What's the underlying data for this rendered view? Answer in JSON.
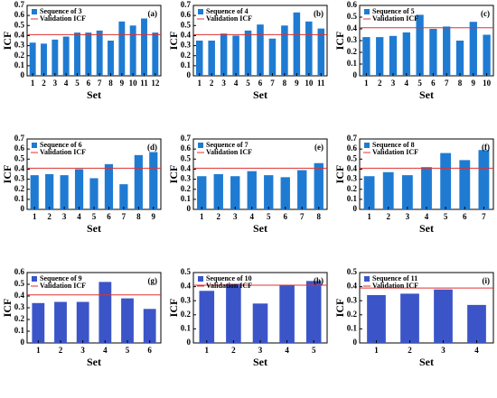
{
  "chart_data": [
    {
      "type": "bar",
      "label": "(a)",
      "xlabel": "Set",
      "ylabel": "ICF",
      "categories": [
        "1",
        "2",
        "3",
        "4",
        "5",
        "6",
        "7",
        "8",
        "9",
        "10",
        "11",
        "12"
      ],
      "series": [
        {
          "name": "Sequence of 3",
          "color": "#1f7bd2",
          "values": [
            0.33,
            0.32,
            0.36,
            0.39,
            0.43,
            0.43,
            0.45,
            0.35,
            0.54,
            0.5,
            0.57,
            0.43
          ]
        }
      ],
      "reference": {
        "name": "Validation ICF",
        "value": 0.41,
        "color": "#e03030"
      },
      "ylim": [
        0,
        0.7
      ],
      "yticks": [
        0,
        0.1,
        0.2,
        0.3,
        0.4,
        0.5,
        0.6,
        0.7
      ]
    },
    {
      "type": "bar",
      "label": "(b)",
      "xlabel": "Set",
      "ylabel": "ICF",
      "categories": [
        "1",
        "2",
        "3",
        "4",
        "5",
        "6",
        "7",
        "8",
        "9",
        "10",
        "11"
      ],
      "series": [
        {
          "name": "Sequence of 4",
          "color": "#1f7bd2",
          "values": [
            0.35,
            0.35,
            0.42,
            0.4,
            0.45,
            0.51,
            0.37,
            0.5,
            0.63,
            0.54,
            0.47
          ]
        }
      ],
      "reference": {
        "name": "Validation ICF",
        "value": 0.41,
        "color": "#e03030"
      },
      "ylim": [
        0,
        0.7
      ],
      "yticks": [
        0,
        0.1,
        0.2,
        0.3,
        0.4,
        0.5,
        0.6,
        0.7
      ]
    },
    {
      "type": "bar",
      "label": "(c)",
      "xlabel": "Set",
      "ylabel": "ICF",
      "categories": [
        "1",
        "2",
        "3",
        "4",
        "5",
        "6",
        "7",
        "8",
        "9",
        "10"
      ],
      "series": [
        {
          "name": "Sequence of 5",
          "color": "#1f7bd2",
          "values": [
            0.33,
            0.33,
            0.34,
            0.37,
            0.52,
            0.4,
            0.42,
            0.3,
            0.46,
            0.35
          ]
        }
      ],
      "reference": {
        "name": "Validation ICF",
        "value": 0.41,
        "color": "#e03030"
      },
      "ylim": [
        0,
        0.6
      ],
      "yticks": [
        0,
        0.1,
        0.2,
        0.3,
        0.4,
        0.5,
        0.6
      ]
    },
    {
      "type": "bar",
      "label": "(d)",
      "xlabel": "Set",
      "ylabel": "ICF",
      "categories": [
        "1",
        "2",
        "3",
        "4",
        "5",
        "6",
        "7",
        "8",
        "9"
      ],
      "series": [
        {
          "name": "Sequence of 6",
          "color": "#1f7bd2",
          "values": [
            0.34,
            0.35,
            0.34,
            0.4,
            0.31,
            0.45,
            0.25,
            0.54,
            0.57
          ]
        }
      ],
      "reference": {
        "name": "Validation ICF",
        "value": 0.41,
        "color": "#e03030"
      },
      "ylim": [
        0,
        0.7
      ],
      "yticks": [
        0,
        0.1,
        0.2,
        0.3,
        0.4,
        0.5,
        0.6,
        0.7
      ]
    },
    {
      "type": "bar",
      "label": "(e)",
      "xlabel": "Set",
      "ylabel": "ICF",
      "categories": [
        "1",
        "2",
        "3",
        "4",
        "5",
        "6",
        "7",
        "8"
      ],
      "series": [
        {
          "name": "Sequence of 7",
          "color": "#1f7bd2",
          "values": [
            0.33,
            0.35,
            0.33,
            0.38,
            0.34,
            0.32,
            0.39,
            0.46
          ]
        }
      ],
      "reference": {
        "name": "Validation ICF",
        "value": 0.41,
        "color": "#e03030"
      },
      "ylim": [
        0,
        0.7
      ],
      "yticks": [
        0,
        0.1,
        0.2,
        0.3,
        0.4,
        0.5,
        0.6,
        0.7
      ]
    },
    {
      "type": "bar",
      "label": "(f)",
      "xlabel": "Set",
      "ylabel": "ICF",
      "categories": [
        "1",
        "2",
        "3",
        "4",
        "5",
        "6",
        "7"
      ],
      "series": [
        {
          "name": "Sequence of 8",
          "color": "#1f7bd2",
          "values": [
            0.33,
            0.37,
            0.34,
            0.42,
            0.56,
            0.49,
            0.59
          ]
        }
      ],
      "reference": {
        "name": "Validation ICF",
        "value": 0.41,
        "color": "#e03030"
      },
      "ylim": [
        0,
        0.7
      ],
      "yticks": [
        0,
        0.1,
        0.2,
        0.3,
        0.4,
        0.5,
        0.6,
        0.7
      ]
    },
    {
      "type": "bar",
      "label": "(g)",
      "xlabel": "Set",
      "ylabel": "ICF",
      "categories": [
        "1",
        "2",
        "3",
        "4",
        "5",
        "6"
      ],
      "series": [
        {
          "name": "Sequence of 9",
          "color": "#3b55c8",
          "values": [
            0.34,
            0.35,
            0.35,
            0.52,
            0.38,
            0.29
          ]
        }
      ],
      "reference": {
        "name": "Validation ICF",
        "value": 0.41,
        "color": "#e03030"
      },
      "ylim": [
        0,
        0.6
      ],
      "yticks": [
        0,
        0.1,
        0.2,
        0.3,
        0.4,
        0.5,
        0.6
      ]
    },
    {
      "type": "bar",
      "label": "(h)",
      "xlabel": "Set",
      "ylabel": "ICF",
      "categories": [
        "1",
        "2",
        "3",
        "4",
        "5"
      ],
      "series": [
        {
          "name": "Sequence of 10",
          "color": "#3b55c8",
          "values": [
            0.37,
            0.42,
            0.28,
            0.41,
            0.44
          ]
        }
      ],
      "reference": {
        "name": "Validation ICF",
        "value": 0.41,
        "color": "#e03030"
      },
      "ylim": [
        0,
        0.5
      ],
      "yticks": [
        0,
        0.1,
        0.2,
        0.3,
        0.4,
        0.5
      ]
    },
    {
      "type": "bar",
      "label": "(i)",
      "xlabel": "Set",
      "ylabel": "ICF",
      "categories": [
        "1",
        "2",
        "3",
        "4"
      ],
      "series": [
        {
          "name": "Sequence of 11",
          "color": "#3b55c8",
          "values": [
            0.34,
            0.35,
            0.38,
            0.27
          ]
        }
      ],
      "reference": {
        "name": "Validation ICF",
        "value": 0.39,
        "color": "#e03030"
      },
      "ylim": [
        0,
        0.5
      ],
      "yticks": [
        0,
        0.1,
        0.2,
        0.3,
        0.4,
        0.5
      ]
    }
  ]
}
